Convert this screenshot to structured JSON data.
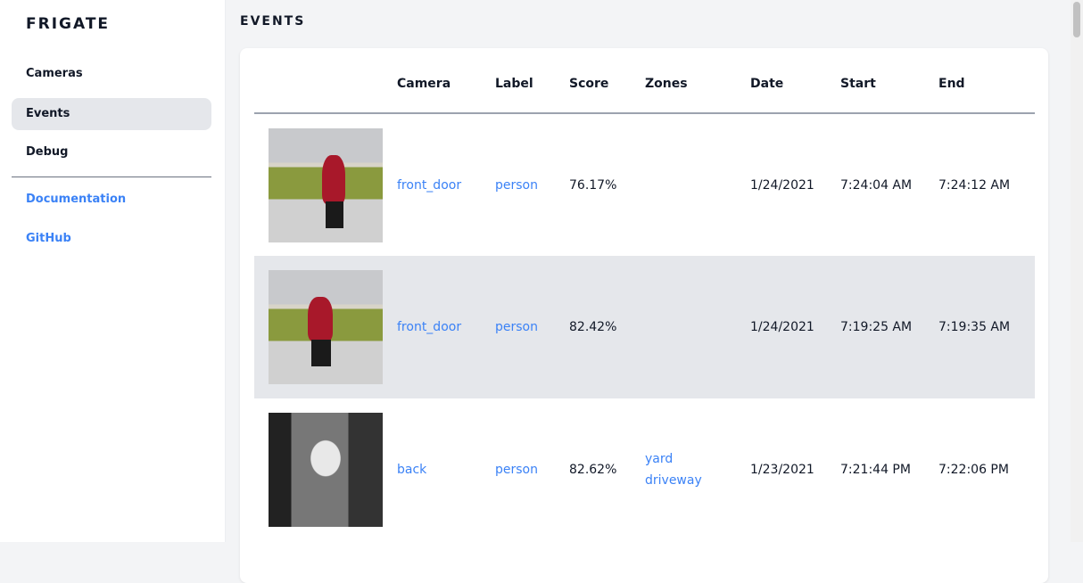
{
  "sidebar": {
    "brand": "FRIGATE",
    "items": [
      {
        "label": "Cameras"
      },
      {
        "label": "Events",
        "active": true
      },
      {
        "label": "Debug"
      }
    ],
    "links": [
      {
        "label": "Documentation"
      },
      {
        "label": "GitHub"
      }
    ]
  },
  "page": {
    "title": "EVENTS"
  },
  "table": {
    "headers": [
      "",
      "Camera",
      "Label",
      "Score",
      "Zones",
      "Date",
      "Start",
      "End"
    ],
    "rows": [
      {
        "camera": "front_door",
        "label": "person",
        "score": "76.17%",
        "zones": [
          "",
          ""
        ],
        "date": "1/24/2021",
        "start": "7:24:04 AM",
        "end": "7:24:12 AM"
      },
      {
        "camera": "front_door",
        "label": "person",
        "score": "82.42%",
        "zones": [
          "",
          ""
        ],
        "date": "1/24/2021",
        "start": "7:19:25 AM",
        "end": "7:19:35 AM"
      },
      {
        "camera": "back",
        "label": "person",
        "score": "82.62%",
        "zones": [
          "yard",
          "driveway"
        ],
        "date": "1/23/2021",
        "start": "7:21:44 PM",
        "end": "7:22:06 PM"
      }
    ]
  },
  "colors": {
    "link": "#3b82f6",
    "active_bg": "#e5e7eb",
    "page_bg": "#f3f4f6"
  }
}
